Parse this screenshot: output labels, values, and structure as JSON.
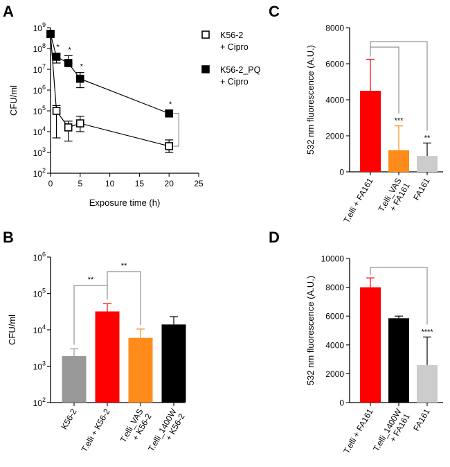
{
  "chart_data": [
    {
      "panel": "A",
      "type": "line",
      "xlabel": "Exposure time (h)",
      "ylabel": "CFU/ml",
      "xlim": [
        0,
        25
      ],
      "xticks": [
        "0",
        "5",
        "10",
        "15",
        "20",
        "25"
      ],
      "ylim_log10": [
        2,
        9
      ],
      "ytick_labels": [
        "10^2",
        "10^3",
        "10^4",
        "10^5",
        "10^6",
        "10^7",
        "10^8",
        "10^9"
      ],
      "series": [
        {
          "name": "K56-2\n+ Cipro",
          "legend_lines": [
            "K56-2",
            "+ Cipro"
          ],
          "marker": "open-square",
          "x": [
            0,
            1,
            3,
            5,
            20
          ],
          "y": [
            500000000,
            100000,
            16000,
            25000,
            2000
          ],
          "err_low": [
            500000000,
            5000,
            3500,
            10000,
            1000
          ],
          "err_high": [
            500000000,
            180000,
            32000,
            55000,
            4000
          ]
        },
        {
          "name": "K56-2_PQ\n+ Cipro",
          "legend_lines": [
            "K56-2_PQ",
            "+ Cipro"
          ],
          "marker": "filled-square",
          "x": [
            0,
            1,
            3,
            5,
            20
          ],
          "y": [
            500000000,
            40000000,
            20000000,
            3500000,
            75000
          ],
          "err_low": [
            500000000,
            20000000,
            20000000,
            1300000,
            55000
          ],
          "err_high": [
            500000000,
            60000000,
            45000000,
            7000000,
            110000
          ]
        }
      ],
      "annotations": [
        {
          "x": 1,
          "text": "*"
        },
        {
          "x": 3,
          "text": "*"
        },
        {
          "x": 5,
          "text": "*"
        },
        {
          "x": 20,
          "text": "*"
        }
      ]
    },
    {
      "panel": "B",
      "type": "bar",
      "ylabel": "CFU/ml",
      "ylim_log10": [
        2,
        6
      ],
      "ytick_labels": [
        "10^2",
        "10^3",
        "10^4",
        "10^5",
        "10^6"
      ],
      "categories": [
        [
          "K56-2"
        ],
        [
          "T.elli + K56-2"
        ],
        [
          "T.elli_VAS",
          "+ K56-2"
        ],
        [
          "T.elli_1400W",
          "+ K56-2"
        ]
      ],
      "values": [
        1900,
        32000,
        6000,
        14000
      ],
      "errors_upper": [
        3000,
        52000,
        10500,
        23000
      ],
      "colors": [
        "#999999",
        "#ff0000",
        "#ff8c1a",
        "#000000"
      ],
      "comparisons": [
        {
          "from": 0,
          "to": 1,
          "text": "**"
        },
        {
          "from": 1,
          "to": 2,
          "text": "**"
        }
      ]
    },
    {
      "panel": "C",
      "type": "bar",
      "ylabel": "532 nm fluorescence (A.U.)",
      "ylim": [
        0,
        8000
      ],
      "yticks": [
        "0",
        "2000",
        "4000",
        "6000",
        "8000"
      ],
      "categories": [
        [
          "T.elli + FA161"
        ],
        [
          "T.elli_VAS",
          "+ FA161"
        ],
        [
          "FA161"
        ]
      ],
      "values": [
        4500,
        1200,
        880
      ],
      "errors_upper": [
        6250,
        2550,
        1600
      ],
      "colors": [
        "#ff0000",
        "#ff8c1a",
        "#cccccc"
      ],
      "error_colors": [
        "#ff0000",
        "#ff8c1a",
        "#000000"
      ],
      "sig_labels": [
        "",
        "***",
        "**"
      ],
      "comparisons": [
        {
          "from": 0,
          "to": 1,
          "text": ""
        },
        {
          "from": 0,
          "to": 2,
          "text": ""
        }
      ]
    },
    {
      "panel": "D",
      "type": "bar",
      "ylabel": "532 nm fluorescence (A.U.)",
      "ylim": [
        0,
        10000
      ],
      "yticks": [
        "0",
        "2000",
        "4000",
        "6000",
        "8000",
        "10000"
      ],
      "categories": [
        [
          "T.elli + FA161"
        ],
        [
          "T.elli_1400W",
          "+ FA161"
        ],
        [
          "FA161"
        ]
      ],
      "values": [
        8000,
        5850,
        2600
      ],
      "errors_upper": [
        8650,
        6000,
        4550
      ],
      "colors": [
        "#ff0000",
        "#000000",
        "#cccccc"
      ],
      "error_colors": [
        "#ff0000",
        "#000000",
        "#000000"
      ],
      "sig_labels": [
        "",
        "",
        "****"
      ],
      "comparisons": [
        {
          "from": 0,
          "to": 2,
          "text": ""
        }
      ]
    }
  ]
}
